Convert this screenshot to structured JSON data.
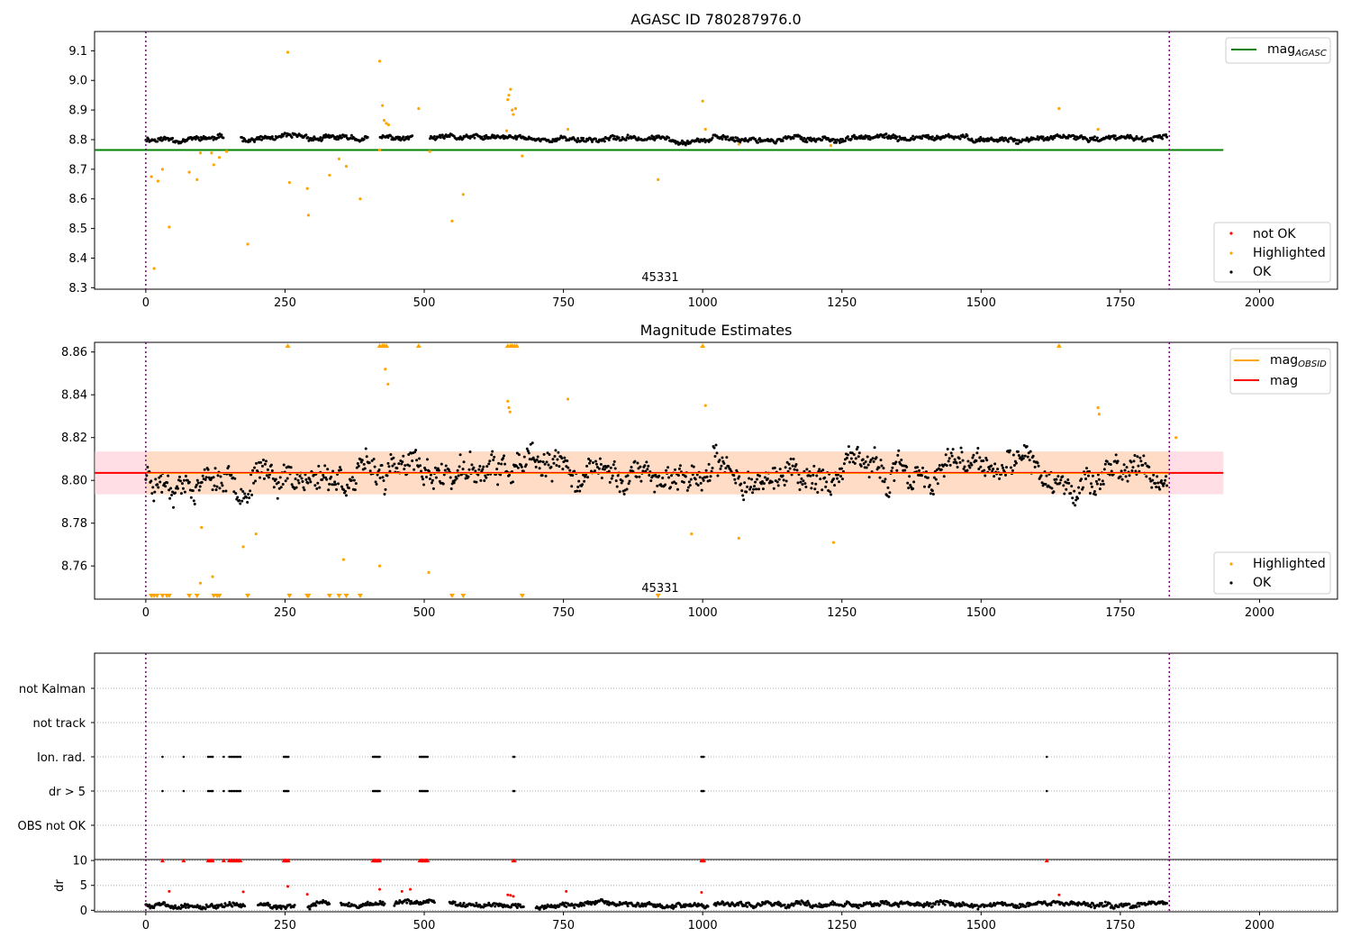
{
  "chart_data": [
    {
      "type": "scatter",
      "title": "AGASC ID 780287976.0",
      "xlim": [
        -92,
        2140
      ],
      "ylim": [
        8.295,
        9.165
      ],
      "xticks": [
        0,
        250,
        500,
        750,
        1000,
        1250,
        1500,
        1750,
        2000
      ],
      "yticks": [
        8.3,
        8.4,
        8.5,
        8.6,
        8.7,
        8.8,
        8.9,
        9.0,
        9.1
      ],
      "ytick_labels": [
        "8.3",
        "8.4",
        "8.5",
        "8.6",
        "8.7",
        "8.8",
        "8.9",
        "9.0",
        "9.1"
      ],
      "obsid_bounds": [
        0,
        1838
      ],
      "obsid_label": "45331",
      "obsid_label_x": 919,
      "mag_agasc": 8.765,
      "mag_agasc_xrange": [
        -92,
        1935
      ],
      "ok_series": {
        "x_start": 0,
        "x_end": 1835,
        "mean": 8.803,
        "spread": 0.012,
        "seed": 11,
        "gaps": [
          [
            140,
            170
          ],
          [
            400,
            420
          ],
          [
            480,
            510
          ]
        ]
      },
      "highlighted_points": [
        [
          10,
          8.675
        ],
        [
          15,
          8.365
        ],
        [
          22,
          8.66
        ],
        [
          30,
          8.7
        ],
        [
          42,
          8.505
        ],
        [
          78,
          8.69
        ],
        [
          92,
          8.665
        ],
        [
          98,
          8.755
        ],
        [
          118,
          8.755
        ],
        [
          122,
          8.715
        ],
        [
          132,
          8.74
        ],
        [
          145,
          8.76
        ],
        [
          183,
          8.447
        ],
        [
          255,
          9.095
        ],
        [
          258,
          8.655
        ],
        [
          290,
          8.635
        ],
        [
          292,
          8.545
        ],
        [
          330,
          8.68
        ],
        [
          347,
          8.735
        ],
        [
          360,
          8.71
        ],
        [
          385,
          8.6
        ],
        [
          420,
          8.765
        ],
        [
          420,
          9.065
        ],
        [
          425,
          8.915
        ],
        [
          428,
          8.865
        ],
        [
          432,
          8.855
        ],
        [
          436,
          8.85
        ],
        [
          490,
          8.905
        ],
        [
          510,
          8.76
        ],
        [
          550,
          8.525
        ],
        [
          570,
          8.615
        ],
        [
          648,
          8.83
        ],
        [
          650,
          8.935
        ],
        [
          652,
          8.95
        ],
        [
          655,
          8.97
        ],
        [
          658,
          8.9
        ],
        [
          660,
          8.885
        ],
        [
          664,
          8.905
        ],
        [
          676,
          8.745
        ],
        [
          758,
          8.835
        ],
        [
          1000,
          8.93
        ],
        [
          1005,
          8.835
        ],
        [
          920,
          8.665
        ],
        [
          1640,
          8.905
        ],
        [
          1710,
          8.835
        ],
        [
          1065,
          8.785
        ],
        [
          1230,
          8.78
        ]
      ],
      "legend_lines": [
        "mag_AGASC"
      ],
      "legend_markers": [
        "not OK",
        "Highlighted",
        "OK"
      ],
      "colors": {
        "ok": "#000000",
        "highlighted": "#ffa500",
        "not_ok": "#ff0000",
        "mag_agasc": "#008000",
        "obsid": "#800080"
      }
    },
    {
      "type": "scatter",
      "title": "Magnitude Estimates",
      "xlim": [
        -92,
        2140
      ],
      "ylim": [
        8.7445,
        8.8645
      ],
      "xticks": [
        0,
        250,
        500,
        750,
        1000,
        1250,
        1500,
        1750,
        2000
      ],
      "yticks": [
        8.76,
        8.78,
        8.8,
        8.82,
        8.84,
        8.86
      ],
      "ytick_labels": [
        "8.76",
        "8.78",
        "8.80",
        "8.82",
        "8.84",
        "8.86"
      ],
      "obsid_bounds": [
        0,
        1838
      ],
      "obsid_label": "45331",
      "obsid_label_x": 919,
      "mag": 8.8035,
      "mag_band": [
        8.7935,
        8.8135
      ],
      "mag_band_xrange": [
        -92,
        1935
      ],
      "mag_obsid": 8.8035,
      "ok_series": {
        "x_start": 0,
        "x_end": 1835,
        "mean": 8.803,
        "spread": 0.009,
        "seed": 23,
        "gaps": []
      },
      "highlighted_points": [
        [
          175,
          8.769
        ],
        [
          198,
          8.775
        ],
        [
          100,
          8.778
        ],
        [
          120,
          8.755
        ],
        [
          98,
          8.752
        ],
        [
          355,
          8.763
        ],
        [
          420,
          8.76
        ],
        [
          430,
          8.852
        ],
        [
          435,
          8.845
        ],
        [
          508,
          8.757
        ],
        [
          650,
          8.837
        ],
        [
          652,
          8.834
        ],
        [
          654,
          8.832
        ],
        [
          758,
          8.838
        ],
        [
          980,
          8.775
        ],
        [
          1005,
          8.835
        ],
        [
          1065,
          8.773
        ],
        [
          1235,
          8.771
        ],
        [
          1710,
          8.834
        ],
        [
          1712,
          8.831
        ],
        [
          1850,
          8.82
        ]
      ],
      "upper_clipped_x": [
        255,
        420,
        425,
        428,
        432,
        490,
        650,
        655,
        658,
        662,
        666,
        1000,
        1640
      ],
      "lower_clipped_x": [
        10,
        15,
        20,
        30,
        38,
        42,
        78,
        92,
        122,
        128,
        132,
        183,
        258,
        290,
        292,
        330,
        347,
        360,
        385,
        550,
        570,
        676,
        920
      ],
      "legend_lines": [
        "mag_OBSID",
        "mag"
      ],
      "legend_markers": [
        "Highlighted",
        "OK"
      ],
      "colors": {
        "ok": "#000000",
        "highlighted": "#ffa500",
        "mag": "#ff0000",
        "mag_obsid": "#ffa500",
        "band": "#ffc0cb",
        "band_obsid": "#ffdab9",
        "obsid": "#800080"
      }
    },
    {
      "type": "scatter",
      "xlim": [
        -92,
        2140
      ],
      "ylabels": [
        "not Kalman",
        "not track",
        "Ion. rad.",
        "dr > 5",
        "OBS not OK"
      ],
      "obsid_bounds": [
        0,
        1838
      ],
      "flag_x": [
        30,
        68,
        112,
        115,
        118,
        120,
        140,
        150,
        153,
        155,
        158,
        160,
        163,
        165,
        168,
        170,
        248,
        250,
        252,
        254,
        256,
        408,
        410,
        412,
        414,
        416,
        418,
        420,
        492,
        494,
        496,
        498,
        500,
        502,
        504,
        506,
        660,
        662,
        998,
        1000,
        1002,
        1618
      ],
      "colors": {
        "flag": "#000000",
        "obsid": "#800080"
      }
    },
    {
      "type": "scatter",
      "ylabel": "dr",
      "xlim": [
        -92,
        2140
      ],
      "ylim": [
        -0.3,
        10.2
      ],
      "xticks": [
        0,
        250,
        500,
        750,
        1000,
        1250,
        1500,
        1750,
        2000
      ],
      "yticks": [
        0,
        5,
        10
      ],
      "ytick_labels": [
        "0",
        "5",
        "10"
      ],
      "obsid_bounds": [
        0,
        1838
      ],
      "red_capped_x": [
        30,
        68,
        112,
        115,
        118,
        120,
        140,
        150,
        153,
        155,
        158,
        160,
        163,
        165,
        168,
        170,
        248,
        250,
        252,
        254,
        256,
        408,
        410,
        412,
        414,
        416,
        418,
        420,
        492,
        494,
        496,
        498,
        500,
        502,
        504,
        506,
        660,
        662,
        998,
        1000,
        1002,
        1618
      ],
      "red_points": [
        [
          42,
          3.8
        ],
        [
          175,
          3.7
        ],
        [
          255,
          4.8
        ],
        [
          290,
          3.2
        ],
        [
          420,
          4.2
        ],
        [
          460,
          3.8
        ],
        [
          475,
          4.2
        ],
        [
          650,
          3.1
        ],
        [
          655,
          3.0
        ],
        [
          660,
          2.8
        ],
        [
          755,
          3.8
        ],
        [
          998,
          3.6
        ],
        [
          1640,
          3.1
        ]
      ],
      "ok_series": {
        "x_start": 0,
        "x_end": 1835,
        "mean": 1.1,
        "spread": 0.7,
        "seed": 5,
        "gaps": [
          [
            178,
            200
          ],
          [
            268,
            290
          ],
          [
            330,
            350
          ],
          [
            430,
            445
          ],
          [
            520,
            545
          ],
          [
            680,
            700
          ],
          [
            1010,
            1020
          ]
        ]
      },
      "colors": {
        "ok": "#000000",
        "red": "#ff0000",
        "obsid": "#800080"
      }
    }
  ]
}
